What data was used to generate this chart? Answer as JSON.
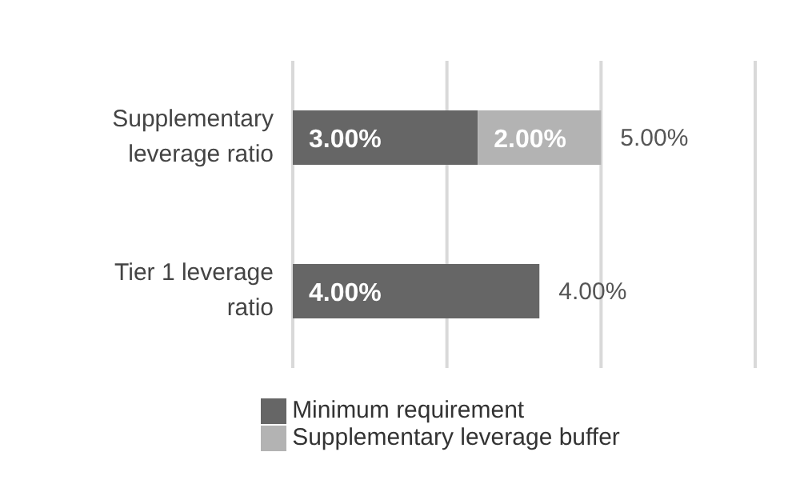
{
  "chart_data": {
    "type": "bar",
    "orientation": "horizontal",
    "stacked": true,
    "categories": [
      "Supplementary leverage ratio",
      "Tier 1 leverage ratio"
    ],
    "series": [
      {
        "name": "Minimum requirement",
        "color": "#666666",
        "values": [
          3,
          4
        ],
        "value_labels": [
          "3.00%",
          "4.00%"
        ]
      },
      {
        "name": "Supplementary leverage buffer",
        "color": "#b3b3b3",
        "values": [
          2,
          null
        ],
        "value_labels": [
          "2.00%",
          null
        ]
      }
    ],
    "totals": [
      "5.00%",
      "4.00%"
    ],
    "xlim": [
      0,
      7.5
    ],
    "xticks": [
      {
        "value": 0,
        "label": null
      },
      {
        "value": 2.5,
        "label": null
      },
      {
        "value": 5,
        "label": null
      },
      {
        "value": 7.5,
        "label": null
      }
    ],
    "tick_labels": "y",
    "grid": "x",
    "legend": "bottom"
  }
}
